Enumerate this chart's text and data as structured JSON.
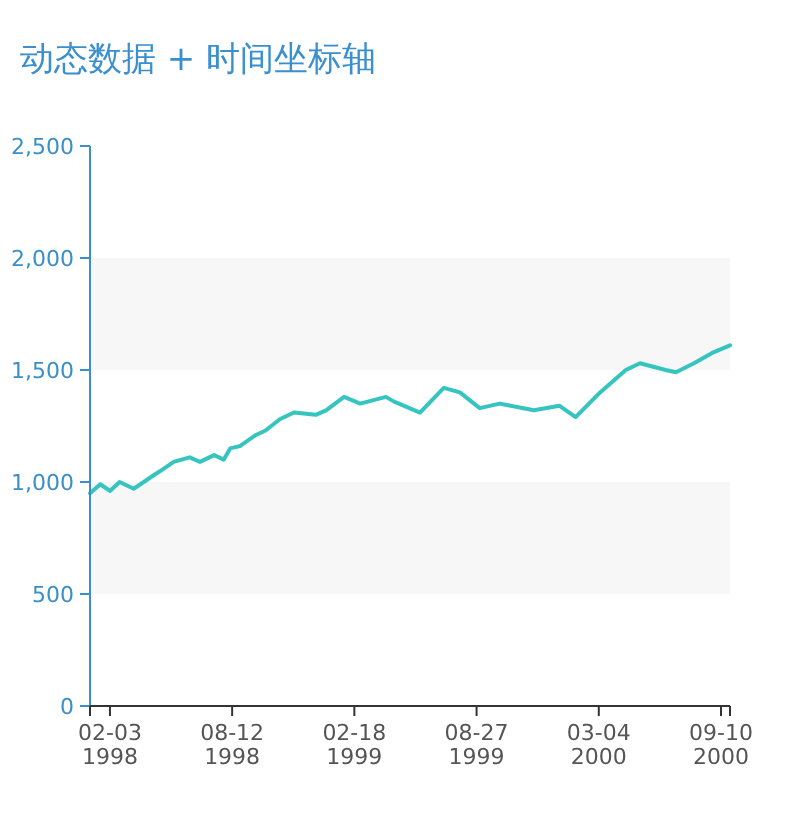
{
  "chart_data": {
    "type": "line",
    "title": "动态数据 + 时间坐标轴",
    "x": [
      "1998-01-03",
      "1998-01-19",
      "1998-02-03",
      "1998-02-18",
      "1998-03-12",
      "1998-04-12",
      "1998-04-28",
      "1998-05-13",
      "1998-06-07",
      "1998-06-23",
      "1998-07-15",
      "1998-07-30",
      "1998-08-09",
      "1998-08-24",
      "1998-09-18",
      "1998-10-03",
      "1998-10-25",
      "1998-11-16",
      "1998-12-20",
      "1999-01-05",
      "1999-02-02",
      "1999-02-27",
      "1999-04-08",
      "1999-04-20",
      "1999-05-31",
      "1999-07-07",
      "1999-08-01",
      "1999-09-01",
      "1999-10-02",
      "1999-11-24",
      "2000-01-03",
      "2000-01-28",
      "2000-03-06",
      "2000-04-15",
      "2000-05-07",
      "2000-06-16",
      "2000-07-02",
      "2000-07-30",
      "2000-08-30",
      "2000-09-24"
    ],
    "series": [
      {
        "color": "#35c4c0",
        "values": [
          950,
          990,
          960,
          1000,
          970,
          1030,
          1060,
          1090,
          1110,
          1090,
          1120,
          1100,
          1150,
          1160,
          1210,
          1230,
          1280,
          1310,
          1300,
          1320,
          1380,
          1350,
          1380,
          1360,
          1310,
          1420,
          1400,
          1330,
          1350,
          1320,
          1340,
          1290,
          1400,
          1500,
          1530,
          1500,
          1490,
          1530,
          1580,
          1610
        ]
      }
    ],
    "xlim": [
      "1998-01-03",
      "2000-09-24"
    ],
    "xticks": [
      {
        "value": "1998-01-03",
        "label": null
      },
      {
        "value": "1998-02-03",
        "label": "02-03\n1998"
      },
      {
        "value": "1998-08-12",
        "label": "08-12\n1998"
      },
      {
        "value": "1999-02-18",
        "label": "02-18\n1999"
      },
      {
        "value": "1999-08-27",
        "label": "08-27\n1999"
      },
      {
        "value": "2000-03-04",
        "label": "03-04\n2000"
      },
      {
        "value": "2000-09-10",
        "label": "09-10\n2000"
      },
      {
        "value": "2000-09-24",
        "label": null
      }
    ],
    "ylim": [
      0,
      2500
    ],
    "yticks": [
      {
        "value": 0,
        "label": "0"
      },
      {
        "value": 500,
        "label": "500"
      },
      {
        "value": 1000,
        "label": "1,000"
      },
      {
        "value": 1500,
        "label": "1,500"
      },
      {
        "value": 2000,
        "label": "2,000"
      },
      {
        "value": 2500,
        "label": "2,500"
      }
    ],
    "marker": "none",
    "line_style": "solid"
  }
}
